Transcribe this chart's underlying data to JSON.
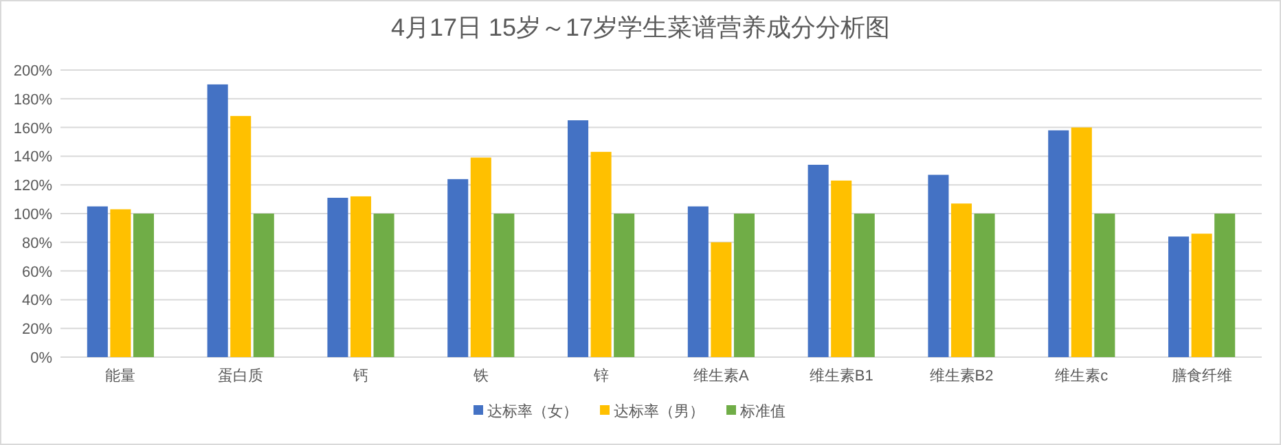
{
  "chart_data": {
    "type": "bar",
    "title": "4月17日 15岁～17岁学生菜谱营养成分分析图",
    "categories": [
      "能量",
      "蛋白质",
      "钙",
      "铁",
      "锌",
      "维生素A",
      "维生素B1",
      "维生素B2",
      "维生素c",
      "膳食纤维"
    ],
    "series": [
      {
        "name": "达标率（女）",
        "color": "#4472c4",
        "values": [
          105,
          190,
          111,
          124,
          165,
          105,
          134,
          127,
          158,
          84
        ]
      },
      {
        "name": "达标率（男）",
        "color": "#ffc000",
        "values": [
          103,
          168,
          112,
          139,
          143,
          80,
          123,
          107,
          160,
          86
        ]
      },
      {
        "name": "标准值",
        "color": "#70ad47",
        "values": [
          100,
          100,
          100,
          100,
          100,
          100,
          100,
          100,
          100,
          100
        ]
      }
    ],
    "ylim": [
      0,
      200
    ],
    "yticks": [
      {
        "value": 0,
        "label": "0%"
      },
      {
        "value": 20,
        "label": "20%"
      },
      {
        "value": 40,
        "label": "40%"
      },
      {
        "value": 60,
        "label": "60%"
      },
      {
        "value": 80,
        "label": "80%"
      },
      {
        "value": 100,
        "label": "100%"
      },
      {
        "value": 120,
        "label": "120%"
      },
      {
        "value": 140,
        "label": "140%"
      },
      {
        "value": 160,
        "label": "160%"
      },
      {
        "value": 180,
        "label": "180%"
      },
      {
        "value": 200,
        "label": "200%"
      }
    ],
    "grid": "y",
    "legend": "bottom"
  }
}
